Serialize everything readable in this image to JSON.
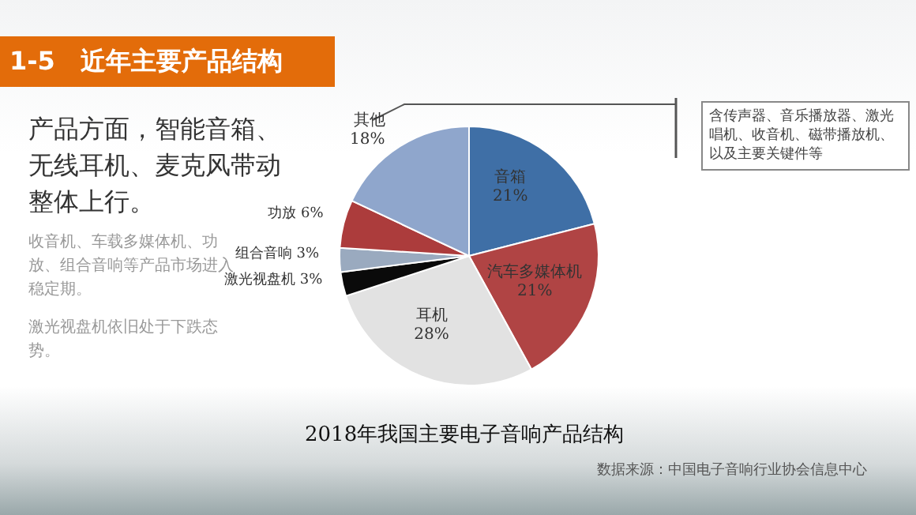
{
  "chart_data": {
    "type": "pie",
    "title": "1-5　近年主要产品结构",
    "subtitle": "2018年我国主要电子音响产品结构",
    "categories": [
      "音箱",
      "汽车多媒体机",
      "耳机",
      "激光视盘机",
      "组合音响",
      "功放",
      "其他"
    ],
    "values": [
      21,
      21,
      28,
      3,
      3,
      6,
      18
    ],
    "value_labels": [
      "21%",
      "21%",
      "28%",
      "3%",
      "3%",
      "6%",
      "18%"
    ],
    "colors": [
      "#3f6fa6",
      "#b04444",
      "#e2e2e2",
      "#0a0a0a",
      "#9aaabf",
      "#ac3c3c",
      "#8fa6cc"
    ],
    "annotations": [
      "产品方面，智能音箱、无线耳机、麦克风带动整体上行。",
      "收音机、车载多媒体机、功放、组合音响等产品市场进入稳定期。",
      "激光视盘机依旧处于下跌态势。",
      "含传声器、音乐播放器、激光唱机、收音机、磁带播放机、以及主要关键件等",
      "数据来源：中国电子音响行业协会信息中心"
    ]
  }
}
